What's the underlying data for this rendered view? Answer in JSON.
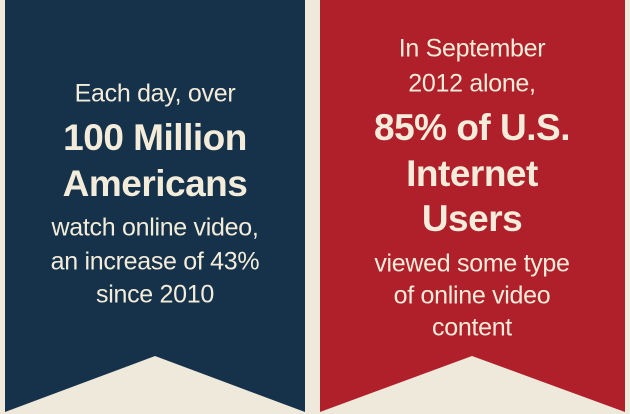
{
  "banners": [
    {
      "intro": [
        "Each day, over"
      ],
      "highlight": [
        "100 Million",
        "Americans"
      ],
      "detail": [
        "watch online video,",
        "an increase of 43%",
        "since 2010"
      ]
    },
    {
      "intro": [
        "In September",
        "2012 alone,"
      ],
      "highlight": [
        "85% of U.S.",
        "Internet",
        "Users"
      ],
      "detail": [
        "viewed some type",
        "of online video",
        "content"
      ]
    }
  ]
}
